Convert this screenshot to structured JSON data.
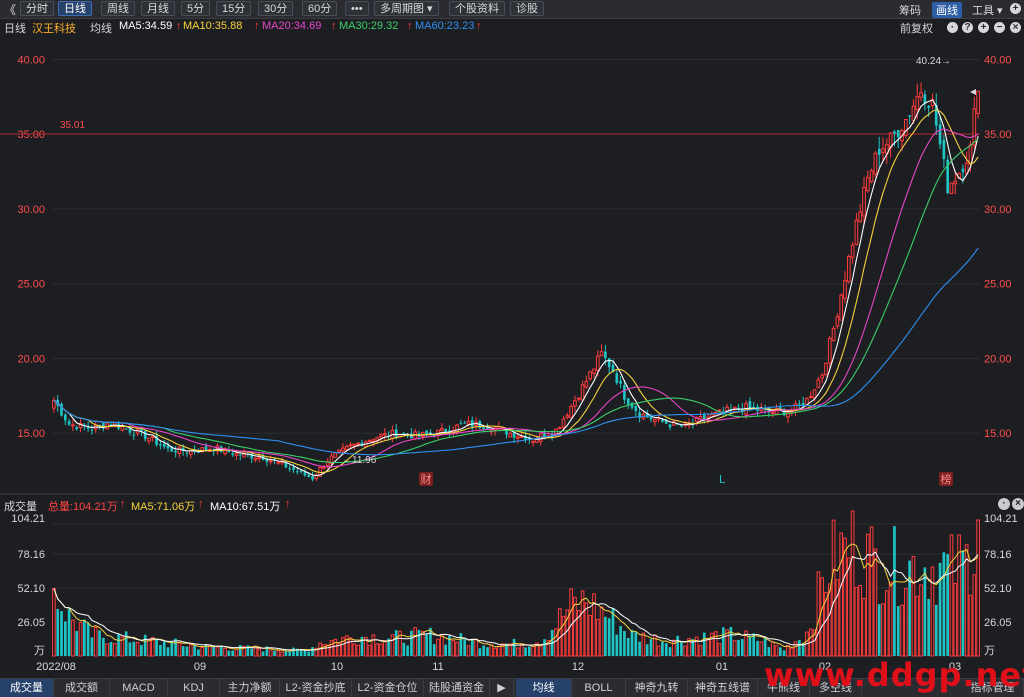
{
  "toolbar": {
    "back": "《",
    "items": [
      "分时",
      "日线",
      "周线",
      "月线",
      "5分",
      "15分",
      "30分",
      "60分",
      "•••",
      "多周期图 ▾",
      "个股资料",
      "诊股"
    ],
    "active": 1,
    "right": [
      "筹码",
      "画线",
      "工具 ▾"
    ],
    "right_active": 1
  },
  "header": {
    "period": "日线",
    "stock": "汉王科技",
    "ma_label": "均线",
    "ma": [
      {
        "text": "MA5:34.59",
        "color": "#ffffff"
      },
      {
        "text": "MA10:35.88",
        "color": "#f5d13c"
      },
      {
        "text": "MA20:34.69",
        "color": "#e845c8"
      },
      {
        "text": "MA30:29.32",
        "color": "#3cce6a"
      },
      {
        "text": "MA60:23.23",
        "color": "#2f8ff0"
      }
    ],
    "right": "前复权"
  },
  "sub_header": {
    "title": "成交量",
    "items": [
      {
        "text": "总量:104.21万",
        "color": "#ff4444"
      },
      {
        "text": "MA5:71.06万",
        "color": "#f5d13c"
      },
      {
        "text": "MA10:67.51万",
        "color": "#ffffff"
      }
    ]
  },
  "bottom_tabs": [
    "成交量",
    "成交额",
    "MACD",
    "KDJ",
    "主力净额",
    "L2-资金抄底",
    "L2-资金仓位",
    "陆股通资金"
  ],
  "bottom_tabs2": [
    "均线",
    "BOLL",
    "神奇九转",
    "神奇五线谱",
    "牛熊线",
    "多空线",
    "指标管理"
  ],
  "watermark": "www.ddgp.net",
  "chart_data": {
    "type": "candlestick",
    "price_axis": {
      "ticks": [
        "40.00",
        "35.00",
        "30.00",
        "25.00",
        "20.00",
        "15.00"
      ],
      "ylim": [
        11,
        41.5
      ]
    },
    "volume_axis": {
      "ticks": [
        "104.21",
        "78.16",
        "52.10",
        "26.05",
        "万"
      ],
      "unit": "万"
    },
    "x_labels": [
      "2022/08",
      "09",
      "10",
      "11",
      "12",
      "01",
      "02",
      "03"
    ],
    "ref_line": {
      "value": 35.01,
      "label": "35.01"
    },
    "annotations": {
      "high_label": "40.24→",
      "low_label": "←11.96",
      "markers": [
        "财",
        "L",
        "榜"
      ]
    },
    "colors": {
      "up": "#ff3b3b",
      "down": "#1fc4c4",
      "bg": "#1d1e22",
      "grid": "#2b2d33",
      "ma5": "#ffffff",
      "ma10": "#f5d13c",
      "ma20": "#e845c8",
      "ma30": "#3cce6a",
      "ma60": "#2f8ff0"
    },
    "anchors": [
      [
        0,
        17.2
      ],
      [
        4,
        15.6
      ],
      [
        10,
        15.3
      ],
      [
        15,
        15.7
      ],
      [
        20,
        15.2
      ],
      [
        25,
        14.7
      ],
      [
        30,
        13.9
      ],
      [
        36,
        13.8
      ],
      [
        42,
        14.0
      ],
      [
        48,
        13.6
      ],
      [
        55,
        13.4
      ],
      [
        60,
        12.9
      ],
      [
        66,
        12.2
      ],
      [
        68,
        12.0
      ],
      [
        72,
        13.2
      ],
      [
        78,
        14.1
      ],
      [
        84,
        14.7
      ],
      [
        90,
        15.0
      ],
      [
        96,
        14.8
      ],
      [
        102,
        15.1
      ],
      [
        108,
        15.6
      ],
      [
        114,
        15.5
      ],
      [
        120,
        15.0
      ],
      [
        126,
        14.6
      ],
      [
        132,
        15.2
      ],
      [
        136,
        16.8
      ],
      [
        140,
        18.5
      ],
      [
        144,
        20.3
      ],
      [
        147,
        19.2
      ],
      [
        150,
        17.5
      ],
      [
        154,
        16.3
      ],
      [
        158,
        15.9
      ],
      [
        162,
        15.6
      ],
      [
        166,
        15.4
      ],
      [
        170,
        15.9
      ],
      [
        176,
        16.4
      ],
      [
        182,
        16.7
      ],
      [
        188,
        16.4
      ],
      [
        194,
        16.5
      ],
      [
        198,
        17.2
      ],
      [
        202,
        19.0
      ],
      [
        205,
        22.0
      ],
      [
        208,
        25.5
      ],
      [
        211,
        29.0
      ],
      [
        214,
        32.0
      ],
      [
        217,
        34.0
      ],
      [
        220,
        34.6
      ],
      [
        224,
        36.0
      ],
      [
        228,
        38.0
      ],
      [
        231,
        37.0
      ],
      [
        235,
        31.5
      ],
      [
        238,
        32.5
      ],
      [
        241,
        34.0
      ],
      [
        243,
        38.5
      ]
    ],
    "vol_anchors": [
      [
        0,
        50
      ],
      [
        4,
        30
      ],
      [
        10,
        16
      ],
      [
        20,
        13
      ],
      [
        30,
        10
      ],
      [
        40,
        7
      ],
      [
        50,
        6
      ],
      [
        60,
        5
      ],
      [
        66,
        4
      ],
      [
        70,
        10
      ],
      [
        80,
        15
      ],
      [
        90,
        14
      ],
      [
        100,
        16
      ],
      [
        110,
        11
      ],
      [
        120,
        9
      ],
      [
        128,
        12
      ],
      [
        136,
        38
      ],
      [
        140,
        42
      ],
      [
        146,
        30
      ],
      [
        152,
        16
      ],
      [
        160,
        12
      ],
      [
        170,
        14
      ],
      [
        178,
        16
      ],
      [
        186,
        12
      ],
      [
        192,
        5
      ],
      [
        198,
        18
      ],
      [
        204,
        72
      ],
      [
        210,
        85
      ],
      [
        216,
        72
      ],
      [
        222,
        68
      ],
      [
        228,
        70
      ],
      [
        236,
        66
      ],
      [
        240,
        72
      ],
      [
        243,
        104
      ]
    ]
  }
}
